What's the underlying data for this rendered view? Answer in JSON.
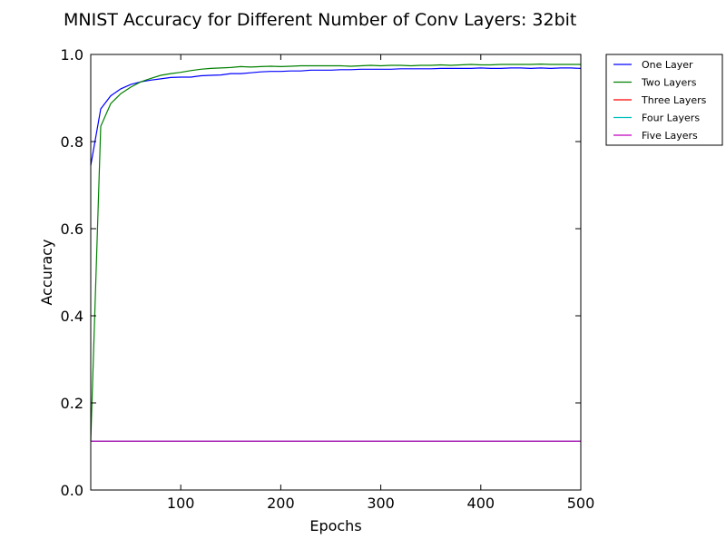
{
  "chart_data": {
    "type": "line",
    "title": "MNIST Accuracy for Different Number of Conv Layers: 32bit",
    "xlabel": "Epochs",
    "ylabel": "Accuracy",
    "xlim": [
      10,
      500
    ],
    "ylim": [
      0.0,
      1.0
    ],
    "xticks": [
      100,
      200,
      300,
      400,
      500
    ],
    "xtick_labels": [
      "100",
      "200",
      "300",
      "400",
      "500"
    ],
    "yticks": [
      0.0,
      0.2,
      0.4,
      0.6,
      0.8,
      1.0
    ],
    "ytick_labels": [
      "0.0",
      "0.2",
      "0.4",
      "0.6",
      "0.8",
      "1.0"
    ],
    "grid": false,
    "legend_position": "outside-top-right",
    "x": [
      10,
      20,
      30,
      40,
      50,
      60,
      70,
      80,
      90,
      100,
      110,
      120,
      130,
      140,
      150,
      160,
      170,
      180,
      190,
      200,
      210,
      220,
      230,
      240,
      250,
      260,
      270,
      280,
      290,
      300,
      310,
      320,
      330,
      340,
      350,
      360,
      370,
      380,
      390,
      400,
      410,
      420,
      430,
      440,
      450,
      460,
      470,
      480,
      490,
      500
    ],
    "series": [
      {
        "name": "One Layer",
        "color": "#0000ff",
        "values": [
          0.745,
          0.875,
          0.905,
          0.921,
          0.931,
          0.937,
          0.941,
          0.944,
          0.947,
          0.948,
          0.948,
          0.951,
          0.952,
          0.953,
          0.956,
          0.956,
          0.958,
          0.96,
          0.961,
          0.961,
          0.962,
          0.962,
          0.964,
          0.964,
          0.964,
          0.965,
          0.965,
          0.966,
          0.966,
          0.966,
          0.966,
          0.967,
          0.967,
          0.967,
          0.967,
          0.968,
          0.968,
          0.968,
          0.968,
          0.969,
          0.968,
          0.968,
          0.969,
          0.969,
          0.968,
          0.969,
          0.968,
          0.969,
          0.969,
          0.968
        ]
      },
      {
        "name": "Two Layers",
        "color": "#008000",
        "values": [
          0.113,
          0.835,
          0.887,
          0.91,
          0.925,
          0.937,
          0.945,
          0.952,
          0.956,
          0.959,
          0.963,
          0.966,
          0.968,
          0.969,
          0.97,
          0.972,
          0.971,
          0.972,
          0.973,
          0.972,
          0.973,
          0.974,
          0.974,
          0.974,
          0.974,
          0.974,
          0.973,
          0.974,
          0.975,
          0.974,
          0.975,
          0.975,
          0.974,
          0.975,
          0.975,
          0.976,
          0.975,
          0.976,
          0.977,
          0.976,
          0.976,
          0.977,
          0.977,
          0.977,
          0.977,
          0.978,
          0.977,
          0.977,
          0.977,
          0.977
        ]
      },
      {
        "name": "Three Layers",
        "color": "#ff0000",
        "values": [
          0.112,
          0.112,
          0.112,
          0.112,
          0.112,
          0.112,
          0.112,
          0.112,
          0.112,
          0.112,
          0.112,
          0.112,
          0.112,
          0.112,
          0.112,
          0.112,
          0.112,
          0.112,
          0.112,
          0.112,
          0.112,
          0.112,
          0.112,
          0.112,
          0.112,
          0.112,
          0.112,
          0.112,
          0.112,
          0.112,
          0.112,
          0.112,
          0.112,
          0.112,
          0.112,
          0.112,
          0.112,
          0.112,
          0.112,
          0.112,
          0.112,
          0.112,
          0.112,
          0.112,
          0.112,
          0.112,
          0.112,
          0.112,
          0.112,
          0.112
        ]
      },
      {
        "name": "Four Layers",
        "color": "#00bfbf",
        "values": [
          0.112,
          0.112,
          0.112,
          0.112,
          0.112,
          0.112,
          0.112,
          0.112,
          0.112,
          0.112,
          0.112,
          0.112,
          0.112,
          0.112,
          0.112,
          0.112,
          0.112,
          0.112,
          0.112,
          0.112,
          0.112,
          0.112,
          0.112,
          0.112,
          0.112,
          0.112,
          0.112,
          0.112,
          0.112,
          0.112,
          0.112,
          0.112,
          0.112,
          0.112,
          0.112,
          0.112,
          0.112,
          0.112,
          0.112,
          0.112,
          0.112,
          0.112,
          0.112,
          0.112,
          0.112,
          0.112,
          0.112,
          0.112,
          0.112,
          0.112
        ]
      },
      {
        "name": "Five Layers",
        "color": "#bf00bf",
        "values": [
          0.112,
          0.112,
          0.112,
          0.112,
          0.112,
          0.112,
          0.112,
          0.112,
          0.112,
          0.112,
          0.112,
          0.112,
          0.112,
          0.112,
          0.112,
          0.112,
          0.112,
          0.112,
          0.112,
          0.112,
          0.112,
          0.112,
          0.112,
          0.112,
          0.112,
          0.112,
          0.112,
          0.112,
          0.112,
          0.112,
          0.112,
          0.112,
          0.112,
          0.112,
          0.112,
          0.112,
          0.112,
          0.112,
          0.112,
          0.112,
          0.112,
          0.112,
          0.112,
          0.112,
          0.112,
          0.112,
          0.112,
          0.112,
          0.112,
          0.112
        ]
      }
    ]
  }
}
